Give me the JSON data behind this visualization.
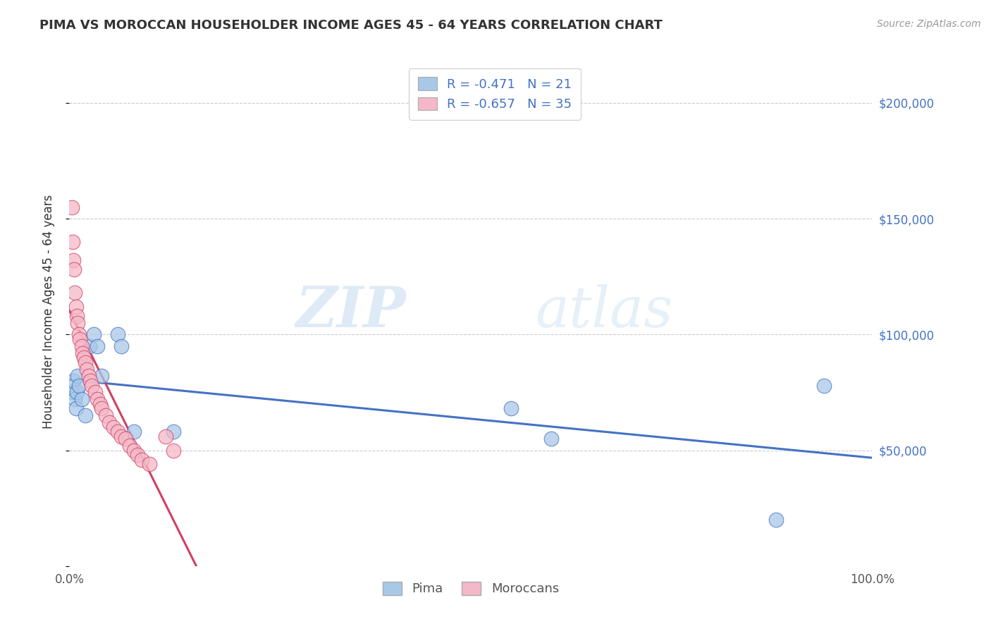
{
  "title": "PIMA VS MOROCCAN HOUSEHOLDER INCOME AGES 45 - 64 YEARS CORRELATION CHART",
  "source": "Source: ZipAtlas.com",
  "ylabel": "Householder Income Ages 45 - 64 years",
  "xlim": [
    0,
    1.0
  ],
  "ylim": [
    0,
    220000
  ],
  "pima_color": "#a8c8e8",
  "moroccan_color": "#f4b8c8",
  "pima_line_color": "#4472c4",
  "moroccan_line_color": "#d04060",
  "legend_label_color": "#4472c4",
  "legend_text_color": "#333333",
  "legend_R_pima": "R = -0.471",
  "legend_N_pima": "N = 21",
  "legend_R_moroccan": "R = -0.657",
  "legend_N_moroccan": "N = 35",
  "watermark_zip": "ZIP",
  "watermark_atlas": "atlas",
  "grid_color": "#cccccc",
  "background_color": "#ffffff",
  "pima_x": [
    0.003,
    0.005,
    0.007,
    0.008,
    0.009,
    0.01,
    0.012,
    0.015,
    0.02,
    0.025,
    0.03,
    0.035,
    0.04,
    0.06,
    0.065,
    0.08,
    0.13,
    0.55,
    0.6,
    0.88,
    0.94
  ],
  "pima_y": [
    75000,
    80000,
    72000,
    68000,
    75000,
    82000,
    78000,
    72000,
    65000,
    95000,
    100000,
    95000,
    82000,
    100000,
    95000,
    58000,
    58000,
    68000,
    55000,
    20000,
    78000
  ],
  "moroccan_x": [
    0.003,
    0.004,
    0.005,
    0.006,
    0.007,
    0.008,
    0.009,
    0.01,
    0.012,
    0.013,
    0.015,
    0.016,
    0.018,
    0.02,
    0.022,
    0.024,
    0.026,
    0.028,
    0.032,
    0.035,
    0.038,
    0.04,
    0.045,
    0.05,
    0.055,
    0.06,
    0.065,
    0.07,
    0.075,
    0.08,
    0.085,
    0.09,
    0.1,
    0.12,
    0.13
  ],
  "moroccan_y": [
    155000,
    140000,
    132000,
    128000,
    118000,
    112000,
    108000,
    105000,
    100000,
    98000,
    95000,
    92000,
    90000,
    88000,
    85000,
    82000,
    80000,
    78000,
    75000,
    72000,
    70000,
    68000,
    65000,
    62000,
    60000,
    58000,
    56000,
    55000,
    52000,
    50000,
    48000,
    46000,
    44000,
    56000,
    50000
  ]
}
